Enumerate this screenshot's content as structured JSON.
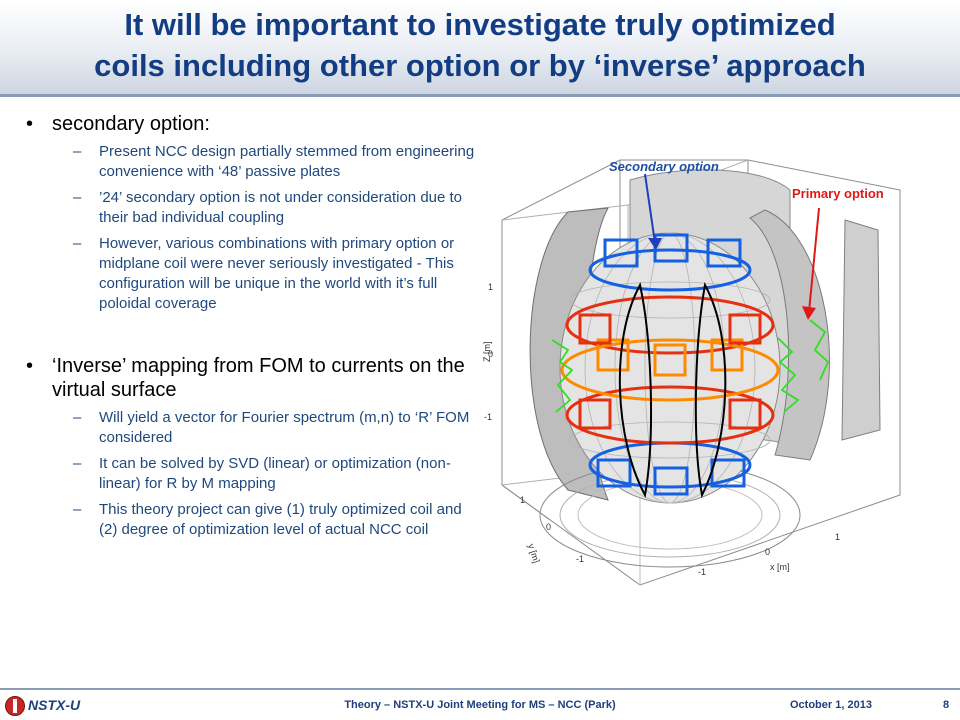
{
  "title": {
    "line1": "It will be important to investigate truly optimized",
    "line2": "coils including other option or by ‘inverse’ approach"
  },
  "bullets": [
    {
      "text": "secondary option:",
      "subs": [
        "Present NCC design partially stemmed from engineering convenience with ‘48’ passive plates",
        "’24’ secondary option is not under consideration due to their bad individual coupling",
        "However, various combinations with primary option or midplane coil were never seriously investigated - This configuration will be unique in the world with it’s full poloidal coverage"
      ]
    },
    {
      "text": "‘Inverse’ mapping from FOM to currents on the virtual surface",
      "subs": [
        "Will yield a vector for Fourier spectrum (m,n) to ‘R’ FOM considered",
        "It can be solved by SVD (linear) or optimization (non-linear) for R by M mapping",
        "This theory project can give (1) truly optimized coil and (2) degree of optimization level of actual NCC coil"
      ]
    }
  ],
  "bullet_glyph": "•",
  "dash_glyph": "–",
  "figure": {
    "secondary_label": "Secondary option",
    "primary_label": "Primary option",
    "zlabel": "Z [m]",
    "ylabel": "y [m]",
    "xlabel": "x [m]",
    "z_ticks": [
      "1",
      "0",
      "-1"
    ],
    "y_ticks": [
      "1",
      "0",
      "-1"
    ],
    "x_ticks": [
      "-1",
      "0",
      "1"
    ],
    "colors": {
      "secondary": "#1560e0",
      "primary_red": "#e53010",
      "primary_orange": "#ff8a00",
      "midplane": "#33dd22",
      "plasma": "#000000",
      "structure": "#7f7f7f"
    }
  },
  "footer": {
    "brand": "NSTX-U",
    "center": "Theory – NSTX-U Joint Meeting for MS – NCC (Park)",
    "date": "October 1, 2013",
    "page": "8"
  }
}
